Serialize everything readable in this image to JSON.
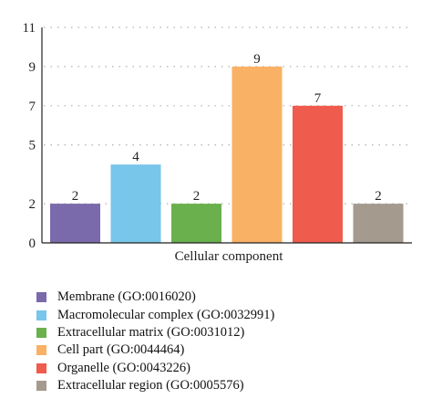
{
  "chart_data": {
    "type": "bar",
    "title": "",
    "xlabel": "Cellular component",
    "ylabel": "",
    "ylim": [
      0,
      11
    ],
    "yticks": [
      0,
      2,
      5,
      7,
      9,
      11
    ],
    "grid": true,
    "legend_position": "bottom",
    "categories": [
      "Membrane (GO:0016020)",
      "Macromolecular complex (GO:0032991)",
      "Extracellular matrix (GO:0031012)",
      "Cell part (GO:0044464)",
      "Organelle (GO:0043226)",
      "Extracellular region (GO:0005576)"
    ],
    "values": [
      2,
      4,
      2,
      9,
      7,
      2
    ],
    "colors": [
      "#7b6aab",
      "#78c6ea",
      "#6ab04c",
      "#f9b165",
      "#ef5b4d",
      "#a49a8e"
    ]
  }
}
